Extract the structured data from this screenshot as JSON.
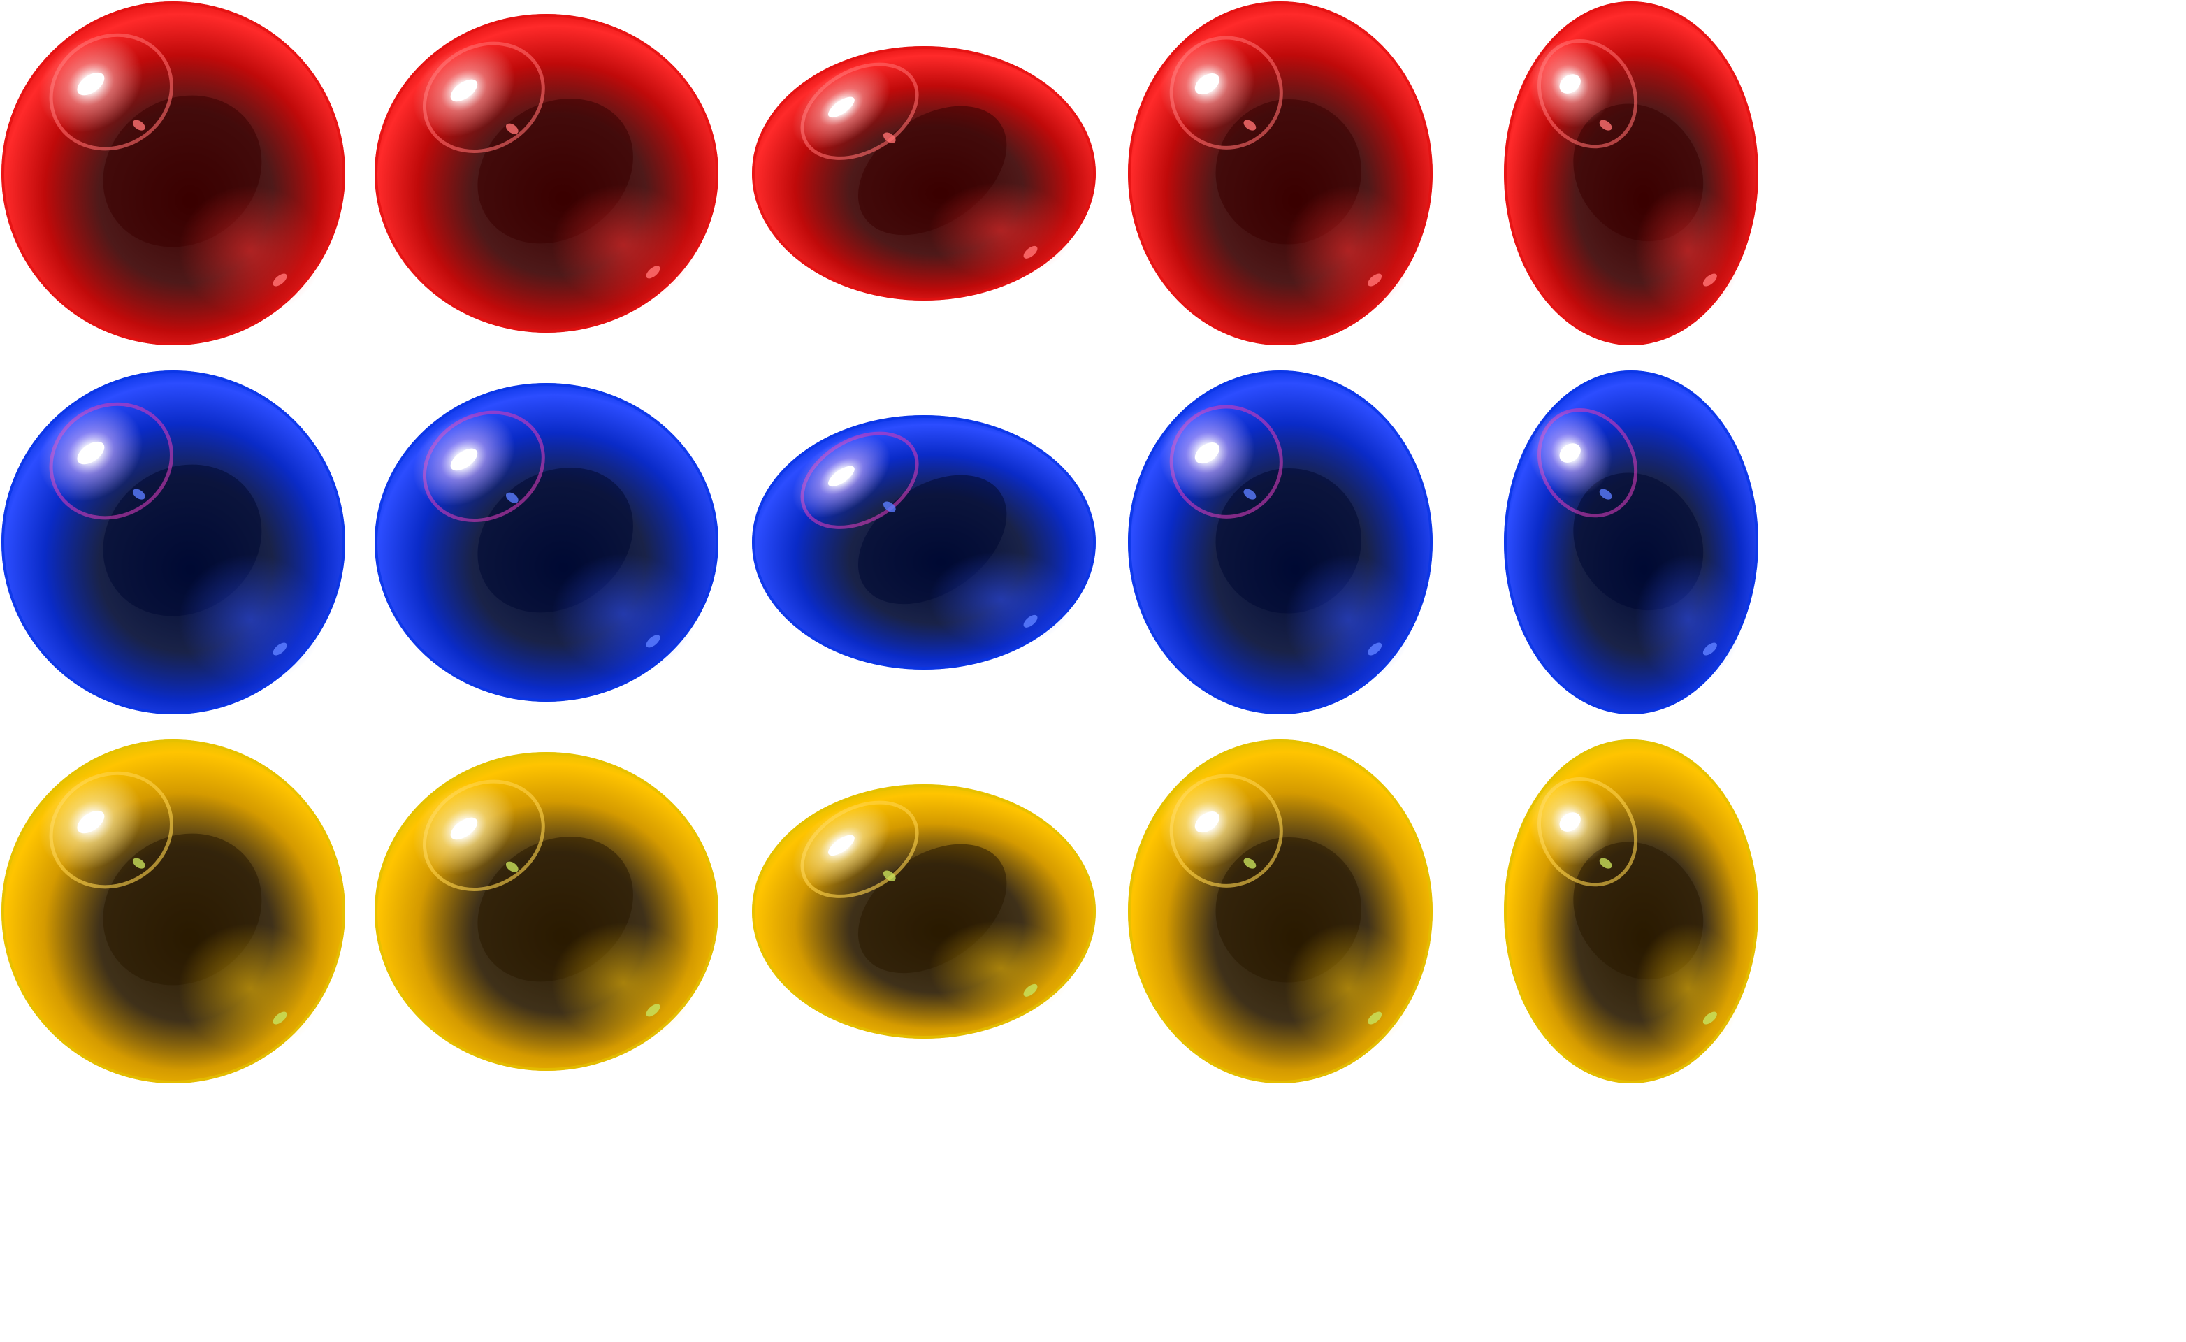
{
  "sprite_sheet": {
    "background": "#ffffff",
    "rows": [
      {
        "color_name": "red",
        "light": "#ff2a2a",
        "mid": "#c00a0a",
        "dark": "#3a0000",
        "rim": "#e31212",
        "halo": "#ffb0b0",
        "halo_ring": "#ff6a6a",
        "speck": "#ff7070"
      },
      {
        "color_name": "blue",
        "light": "#2c4dff",
        "mid": "#0a2bc8",
        "dark": "#000a33",
        "rim": "#0a36e6",
        "halo": "#d9b8ff",
        "halo_ring": "#d13ab8",
        "speck": "#5a7cff"
      },
      {
        "color_name": "yellow",
        "light": "#ffc400",
        "mid": "#d49a00",
        "dark": "#2a1a00",
        "rim": "#e3c100",
        "halo": "#fff0b0",
        "halo_ring": "#ffd34d",
        "speck": "#c8e05a"
      }
    ],
    "shapes": [
      {
        "variant": "round"
      },
      {
        "variant": "wide"
      },
      {
        "variant": "flat"
      },
      {
        "variant": "tall"
      },
      {
        "variant": "narrow"
      }
    ]
  }
}
